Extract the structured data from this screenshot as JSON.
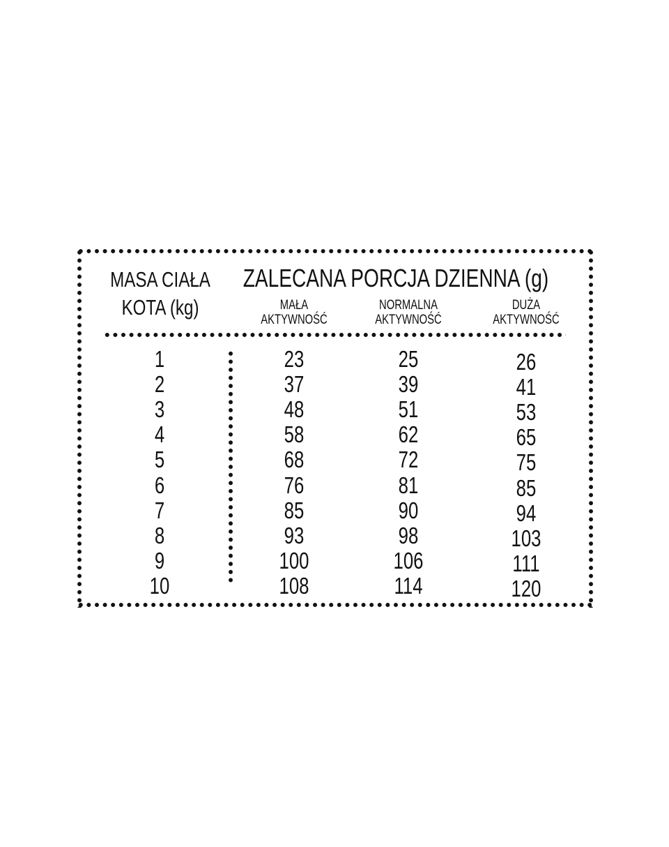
{
  "header": {
    "mass_line1": "MASA CIAŁA",
    "mass_line2": "KOTA (kg)",
    "portion_title": "ZALECANA PORCJA DZIENNA (g)",
    "columns": [
      {
        "line1": "MAŁA",
        "line2": "AKTYWNOŚĆ"
      },
      {
        "line1": "NORMALNA",
        "line2": "AKTYWNOŚĆ"
      },
      {
        "line1": "DUŻA",
        "line2": "AKTYWNOŚĆ"
      }
    ]
  },
  "rows": [
    [
      "1",
      "23",
      "25",
      "26"
    ],
    [
      "2",
      "37",
      "39",
      "41"
    ],
    [
      "3",
      "48",
      "51",
      "53"
    ],
    [
      "4",
      "58",
      "62",
      "65"
    ],
    [
      "5",
      "68",
      "72",
      "75"
    ],
    [
      "6",
      "76",
      "81",
      "85"
    ],
    [
      "7",
      "85",
      "90",
      "94"
    ],
    [
      "8",
      "93",
      "98",
      "103"
    ],
    [
      "9",
      "100",
      "106",
      "111"
    ],
    [
      "10",
      "108",
      "114",
      "120"
    ]
  ]
}
